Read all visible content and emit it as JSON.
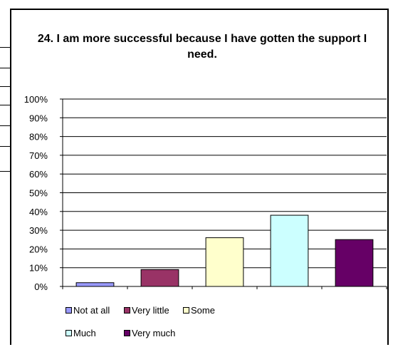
{
  "chart_data": {
    "type": "bar",
    "title": "24. I am more successful because I have gotten the support I need.",
    "categories": [
      "Not at all",
      "Very little",
      "Some",
      "Much",
      "Very much"
    ],
    "values": [
      2,
      9,
      26,
      38,
      25
    ],
    "colors": [
      "#9999ff",
      "#993366",
      "#ffffcc",
      "#ccffff",
      "#660066"
    ],
    "ylim": [
      0,
      100
    ],
    "yticks": [
      "0%",
      "10%",
      "20%",
      "30%",
      "40%",
      "50%",
      "60%",
      "70%",
      "80%",
      "90%",
      "100%"
    ],
    "grid": true,
    "legend": "bottom"
  }
}
